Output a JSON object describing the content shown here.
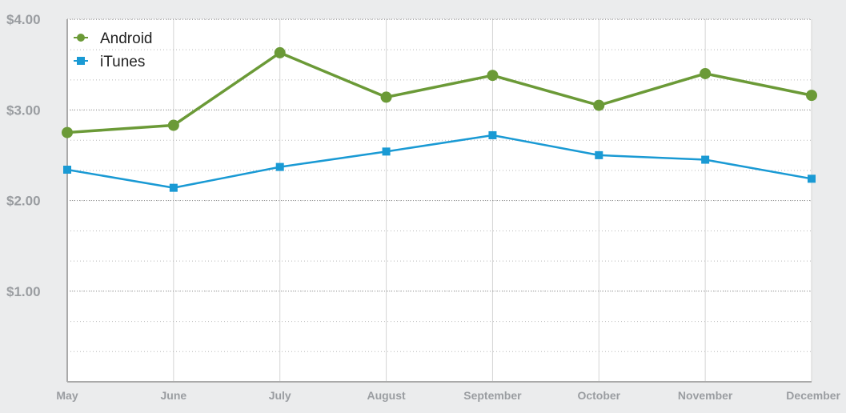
{
  "chart_data": {
    "type": "line",
    "categories": [
      "May",
      "June",
      "July",
      "August",
      "September",
      "October",
      "November",
      "December"
    ],
    "series": [
      {
        "name": "Android",
        "values": [
          2.75,
          2.83,
          3.63,
          3.14,
          3.38,
          3.05,
          3.4,
          3.16
        ],
        "color": "#6b9a37",
        "marker": "circle"
      },
      {
        "name": "iTunes",
        "values": [
          2.34,
          2.14,
          2.37,
          2.54,
          2.72,
          2.5,
          2.45,
          2.24
        ],
        "color": "#1a9ad4",
        "marker": "square"
      }
    ],
    "y_ticks": [
      {
        "value": 1,
        "label": "$1.00"
      },
      {
        "value": 2,
        "label": "$2.00"
      },
      {
        "value": 3,
        "label": "$3.00"
      },
      {
        "value": 4,
        "label": "$4.00"
      }
    ],
    "ylim": [
      0,
      4
    ],
    "minor_grid_step": 0.333,
    "grid": true,
    "legend": "top-left",
    "colors": {
      "plot_background": "#ffffff",
      "page_background": "#ebeced",
      "axis": "#aaaaaa",
      "grid": "#cccccc"
    }
  }
}
